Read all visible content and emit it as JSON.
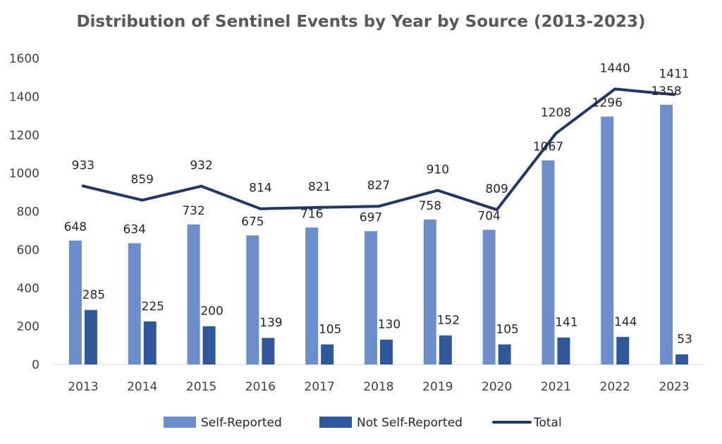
{
  "chart_data": {
    "type": "bar",
    "title": "Distribution of Sentinel Events by Year by Source (2013-2023)",
    "xlabel": "",
    "ylabel": "",
    "ylim": [
      0,
      1600
    ],
    "yticks": [
      0,
      200,
      400,
      600,
      800,
      1000,
      1200,
      1400,
      1600
    ],
    "grid": false,
    "legend_position": "bottom",
    "categories": [
      "2013",
      "2014",
      "2015",
      "2016",
      "2017",
      "2018",
      "2019",
      "2020",
      "2021",
      "2022",
      "2023"
    ],
    "series": [
      {
        "name": "Self-Reported",
        "type": "bar",
        "color": "#6C8FCB",
        "values": [
          648,
          634,
          732,
          675,
          716,
          697,
          758,
          704,
          1067,
          1296,
          1358
        ]
      },
      {
        "name": "Not Self-Reported",
        "type": "bar",
        "color": "#30579A",
        "values": [
          285,
          225,
          200,
          139,
          105,
          130,
          152,
          105,
          141,
          144,
          53
        ]
      },
      {
        "name": "Total",
        "type": "line",
        "color": "#203864",
        "values": [
          933,
          859,
          932,
          814,
          821,
          827,
          910,
          809,
          1208,
          1440,
          1411
        ]
      }
    ]
  }
}
